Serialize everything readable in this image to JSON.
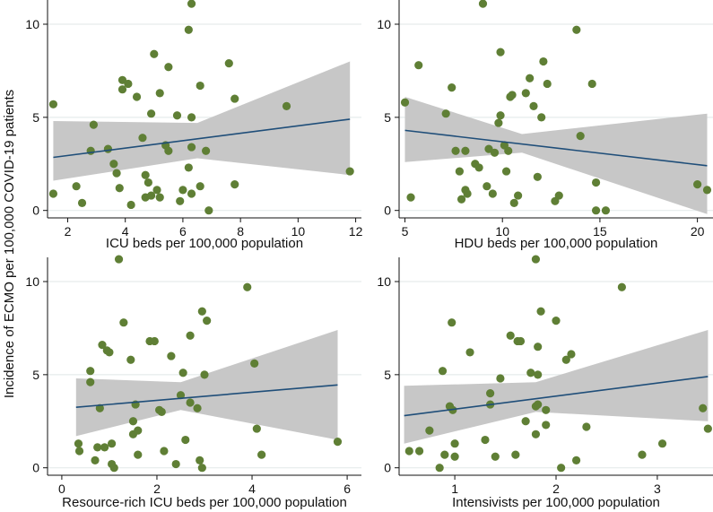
{
  "y_label": "Incidence of ECMO per 100,000 COVID-19 patients",
  "colors": {
    "point": "#5f7f35",
    "line": "#1f4e79",
    "band": "#c7c7c7",
    "grid": "#e6ecec",
    "axis": "#111111"
  },
  "chart_data": [
    {
      "type": "scatter",
      "xlabel": "ICU beds per 100,000 population",
      "ylabel": "Incidence of ECMO per 100,000 COVID-19 patients",
      "xlim": [
        1.3,
        12.2
      ],
      "ylim": [
        -0.4,
        11.3
      ],
      "xticks": [
        2,
        4,
        6,
        8,
        10,
        12
      ],
      "yticks": [
        0,
        5,
        10
      ],
      "fit": {
        "x": [
          1.5,
          11.8
        ],
        "y": [
          2.85,
          4.9
        ]
      },
      "ci": {
        "x": [
          1.5,
          6.5,
          11.8
        ],
        "lower": [
          1.6,
          2.8,
          1.9
        ],
        "upper": [
          4.8,
          4.7,
          8.0
        ]
      },
      "points": [
        [
          1.5,
          5.7
        ],
        [
          1.5,
          0.9
        ],
        [
          2.3,
          1.3
        ],
        [
          2.5,
          0.4
        ],
        [
          2.8,
          3.2
        ],
        [
          2.9,
          4.6
        ],
        [
          3.4,
          3.3
        ],
        [
          3.6,
          2.5
        ],
        [
          3.7,
          2.0
        ],
        [
          3.8,
          1.2
        ],
        [
          3.9,
          7.0
        ],
        [
          3.9,
          6.5
        ],
        [
          4.1,
          6.8
        ],
        [
          4.2,
          0.3
        ],
        [
          4.4,
          6.1
        ],
        [
          4.6,
          3.9
        ],
        [
          4.7,
          1.9
        ],
        [
          4.7,
          0.7
        ],
        [
          4.8,
          1.5
        ],
        [
          4.9,
          5.2
        ],
        [
          4.9,
          0.8
        ],
        [
          5.0,
          8.4
        ],
        [
          5.1,
          1.1
        ],
        [
          5.2,
          0.7
        ],
        [
          5.2,
          6.3
        ],
        [
          5.4,
          3.5
        ],
        [
          5.5,
          7.7
        ],
        [
          5.5,
          3.2
        ],
        [
          5.8,
          5.1
        ],
        [
          5.9,
          0.5
        ],
        [
          6.0,
          1.1
        ],
        [
          6.2,
          9.7
        ],
        [
          6.2,
          2.3
        ],
        [
          6.3,
          5.0
        ],
        [
          6.3,
          11.1
        ],
        [
          6.3,
          3.4
        ],
        [
          6.3,
          0.9
        ],
        [
          6.6,
          6.7
        ],
        [
          6.6,
          1.3
        ],
        [
          6.8,
          3.2
        ],
        [
          6.9,
          0.0
        ],
        [
          7.6,
          7.9
        ],
        [
          7.8,
          6.0
        ],
        [
          7.8,
          1.4
        ],
        [
          9.6,
          5.6
        ],
        [
          11.8,
          2.1
        ]
      ]
    },
    {
      "type": "scatter",
      "xlabel": "HDU beds per 100,000 population",
      "ylabel": "",
      "xlim": [
        4.7,
        20.8
      ],
      "ylim": [
        -0.4,
        11.3
      ],
      "xticks": [
        5,
        10,
        15,
        20
      ],
      "yticks": [
        0,
        5,
        10
      ],
      "fit": {
        "x": [
          5.0,
          20.5
        ],
        "y": [
          4.3,
          2.4
        ]
      },
      "ci": {
        "x": [
          5.0,
          11.0,
          20.5
        ],
        "lower": [
          2.6,
          3.1,
          -0.2
        ],
        "upper": [
          6.1,
          4.1,
          5.2
        ]
      },
      "points": [
        [
          5.0,
          5.8
        ],
        [
          5.3,
          0.7
        ],
        [
          5.7,
          7.8
        ],
        [
          7.1,
          5.2
        ],
        [
          7.4,
          6.6
        ],
        [
          7.6,
          3.2
        ],
        [
          7.8,
          2.1
        ],
        [
          7.9,
          0.6
        ],
        [
          8.1,
          1.1
        ],
        [
          8.1,
          3.2
        ],
        [
          8.2,
          0.9
        ],
        [
          8.6,
          2.5
        ],
        [
          8.8,
          2.3
        ],
        [
          9.0,
          11.1
        ],
        [
          9.2,
          1.3
        ],
        [
          9.3,
          3.3
        ],
        [
          9.5,
          0.9
        ],
        [
          9.6,
          3.1
        ],
        [
          9.8,
          4.7
        ],
        [
          9.9,
          5.1
        ],
        [
          9.9,
          8.5
        ],
        [
          10.1,
          3.5
        ],
        [
          10.2,
          2.1
        ],
        [
          10.3,
          3.2
        ],
        [
          10.4,
          6.1
        ],
        [
          10.5,
          6.2
        ],
        [
          10.6,
          0.4
        ],
        [
          10.8,
          0.8
        ],
        [
          11.2,
          6.3
        ],
        [
          11.4,
          7.1
        ],
        [
          11.6,
          5.6
        ],
        [
          11.8,
          1.8
        ],
        [
          12.0,
          5.0
        ],
        [
          12.1,
          8.0
        ],
        [
          12.3,
          6.8
        ],
        [
          12.7,
          0.5
        ],
        [
          12.9,
          0.8
        ],
        [
          13.8,
          9.7
        ],
        [
          14.0,
          4.0
        ],
        [
          14.6,
          6.8
        ],
        [
          14.8,
          1.5
        ],
        [
          14.8,
          0.0
        ],
        [
          15.3,
          0.0
        ],
        [
          20.0,
          1.4
        ],
        [
          20.5,
          1.1
        ]
      ]
    },
    {
      "type": "scatter",
      "xlabel": "Resource-rich ICU beds per 100,000 population",
      "ylabel": "",
      "xlim": [
        -0.3,
        6.3
      ],
      "ylim": [
        -0.4,
        11.3
      ],
      "xticks": [
        0,
        2,
        4,
        6
      ],
      "yticks": [
        0,
        5,
        10
      ],
      "fit": {
        "x": [
          0.3,
          5.8
        ],
        "y": [
          3.25,
          4.45
        ]
      },
      "ci": {
        "x": [
          0.3,
          2.5,
          5.8
        ],
        "lower": [
          1.7,
          3.1,
          1.5
        ],
        "upper": [
          4.8,
          4.6,
          7.4
        ]
      },
      "points": [
        [
          0.35,
          1.3
        ],
        [
          0.37,
          0.9
        ],
        [
          0.6,
          5.2
        ],
        [
          0.6,
          4.6
        ],
        [
          0.7,
          0.4
        ],
        [
          0.75,
          1.1
        ],
        [
          0.8,
          3.2
        ],
        [
          0.85,
          6.6
        ],
        [
          0.9,
          1.1
        ],
        [
          0.95,
          6.3
        ],
        [
          1.0,
          6.2
        ],
        [
          1.05,
          0.2
        ],
        [
          1.05,
          1.3
        ],
        [
          1.1,
          0.0
        ],
        [
          1.2,
          11.2
        ],
        [
          1.3,
          7.8
        ],
        [
          1.45,
          5.8
        ],
        [
          1.5,
          2.5
        ],
        [
          1.5,
          1.8
        ],
        [
          1.55,
          3.4
        ],
        [
          1.6,
          0.7
        ],
        [
          1.6,
          2.0
        ],
        [
          1.85,
          6.8
        ],
        [
          1.95,
          6.8
        ],
        [
          2.05,
          3.1
        ],
        [
          2.1,
          3.0
        ],
        [
          2.15,
          0.9
        ],
        [
          2.3,
          6.0
        ],
        [
          2.4,
          0.2
        ],
        [
          2.5,
          3.9
        ],
        [
          2.55,
          5.1
        ],
        [
          2.6,
          1.5
        ],
        [
          2.7,
          7.1
        ],
        [
          2.7,
          3.5
        ],
        [
          2.85,
          3.2
        ],
        [
          2.9,
          0.4
        ],
        [
          2.95,
          0.0
        ],
        [
          2.95,
          8.4
        ],
        [
          3.0,
          5.0
        ],
        [
          3.05,
          7.9
        ],
        [
          3.9,
          9.7
        ],
        [
          4.05,
          5.6
        ],
        [
          4.1,
          2.1
        ],
        [
          4.2,
          0.7
        ],
        [
          5.8,
          1.4
        ]
      ]
    },
    {
      "type": "scatter",
      "xlabel": "Intensivists per 100,000 population",
      "ylabel": "",
      "xlim": [
        0.45,
        3.55
      ],
      "ylim": [
        -0.4,
        11.3
      ],
      "xticks": [
        1,
        2,
        3
      ],
      "yticks": [
        0,
        5,
        10
      ],
      "fit": {
        "x": [
          0.5,
          3.5
        ],
        "y": [
          2.8,
          4.9
        ]
      },
      "ci": {
        "x": [
          0.5,
          1.8,
          3.5
        ],
        "lower": [
          1.3,
          3.0,
          2.5
        ],
        "upper": [
          4.4,
          4.6,
          7.4
        ]
      },
      "points": [
        [
          0.55,
          0.9
        ],
        [
          0.65,
          0.9
        ],
        [
          0.75,
          2.0
        ],
        [
          0.85,
          0.0
        ],
        [
          0.88,
          5.2
        ],
        [
          0.9,
          0.7
        ],
        [
          0.95,
          3.3
        ],
        [
          0.97,
          7.8
        ],
        [
          0.98,
          3.1
        ],
        [
          1.0,
          1.3
        ],
        [
          1.0,
          0.6
        ],
        [
          1.15,
          6.2
        ],
        [
          1.3,
          1.5
        ],
        [
          1.35,
          3.4
        ],
        [
          1.35,
          4.0
        ],
        [
          1.4,
          0.6
        ],
        [
          1.45,
          4.8
        ],
        [
          1.55,
          7.1
        ],
        [
          1.6,
          0.7
        ],
        [
          1.62,
          6.8
        ],
        [
          1.65,
          6.8
        ],
        [
          1.7,
          2.5
        ],
        [
          1.75,
          5.1
        ],
        [
          1.8,
          3.3
        ],
        [
          1.8,
          1.8
        ],
        [
          1.8,
          11.2
        ],
        [
          1.82,
          6.5
        ],
        [
          1.82,
          3.4
        ],
        [
          1.82,
          5.0
        ],
        [
          1.85,
          8.4
        ],
        [
          1.9,
          3.1
        ],
        [
          1.9,
          2.3
        ],
        [
          2.0,
          7.9
        ],
        [
          2.05,
          0.0
        ],
        [
          2.1,
          5.8
        ],
        [
          2.15,
          6.1
        ],
        [
          2.2,
          0.4
        ],
        [
          2.3,
          2.2
        ],
        [
          2.65,
          9.7
        ],
        [
          2.85,
          0.7
        ],
        [
          3.05,
          1.3
        ],
        [
          3.45,
          3.2
        ],
        [
          3.5,
          2.1
        ]
      ]
    }
  ]
}
